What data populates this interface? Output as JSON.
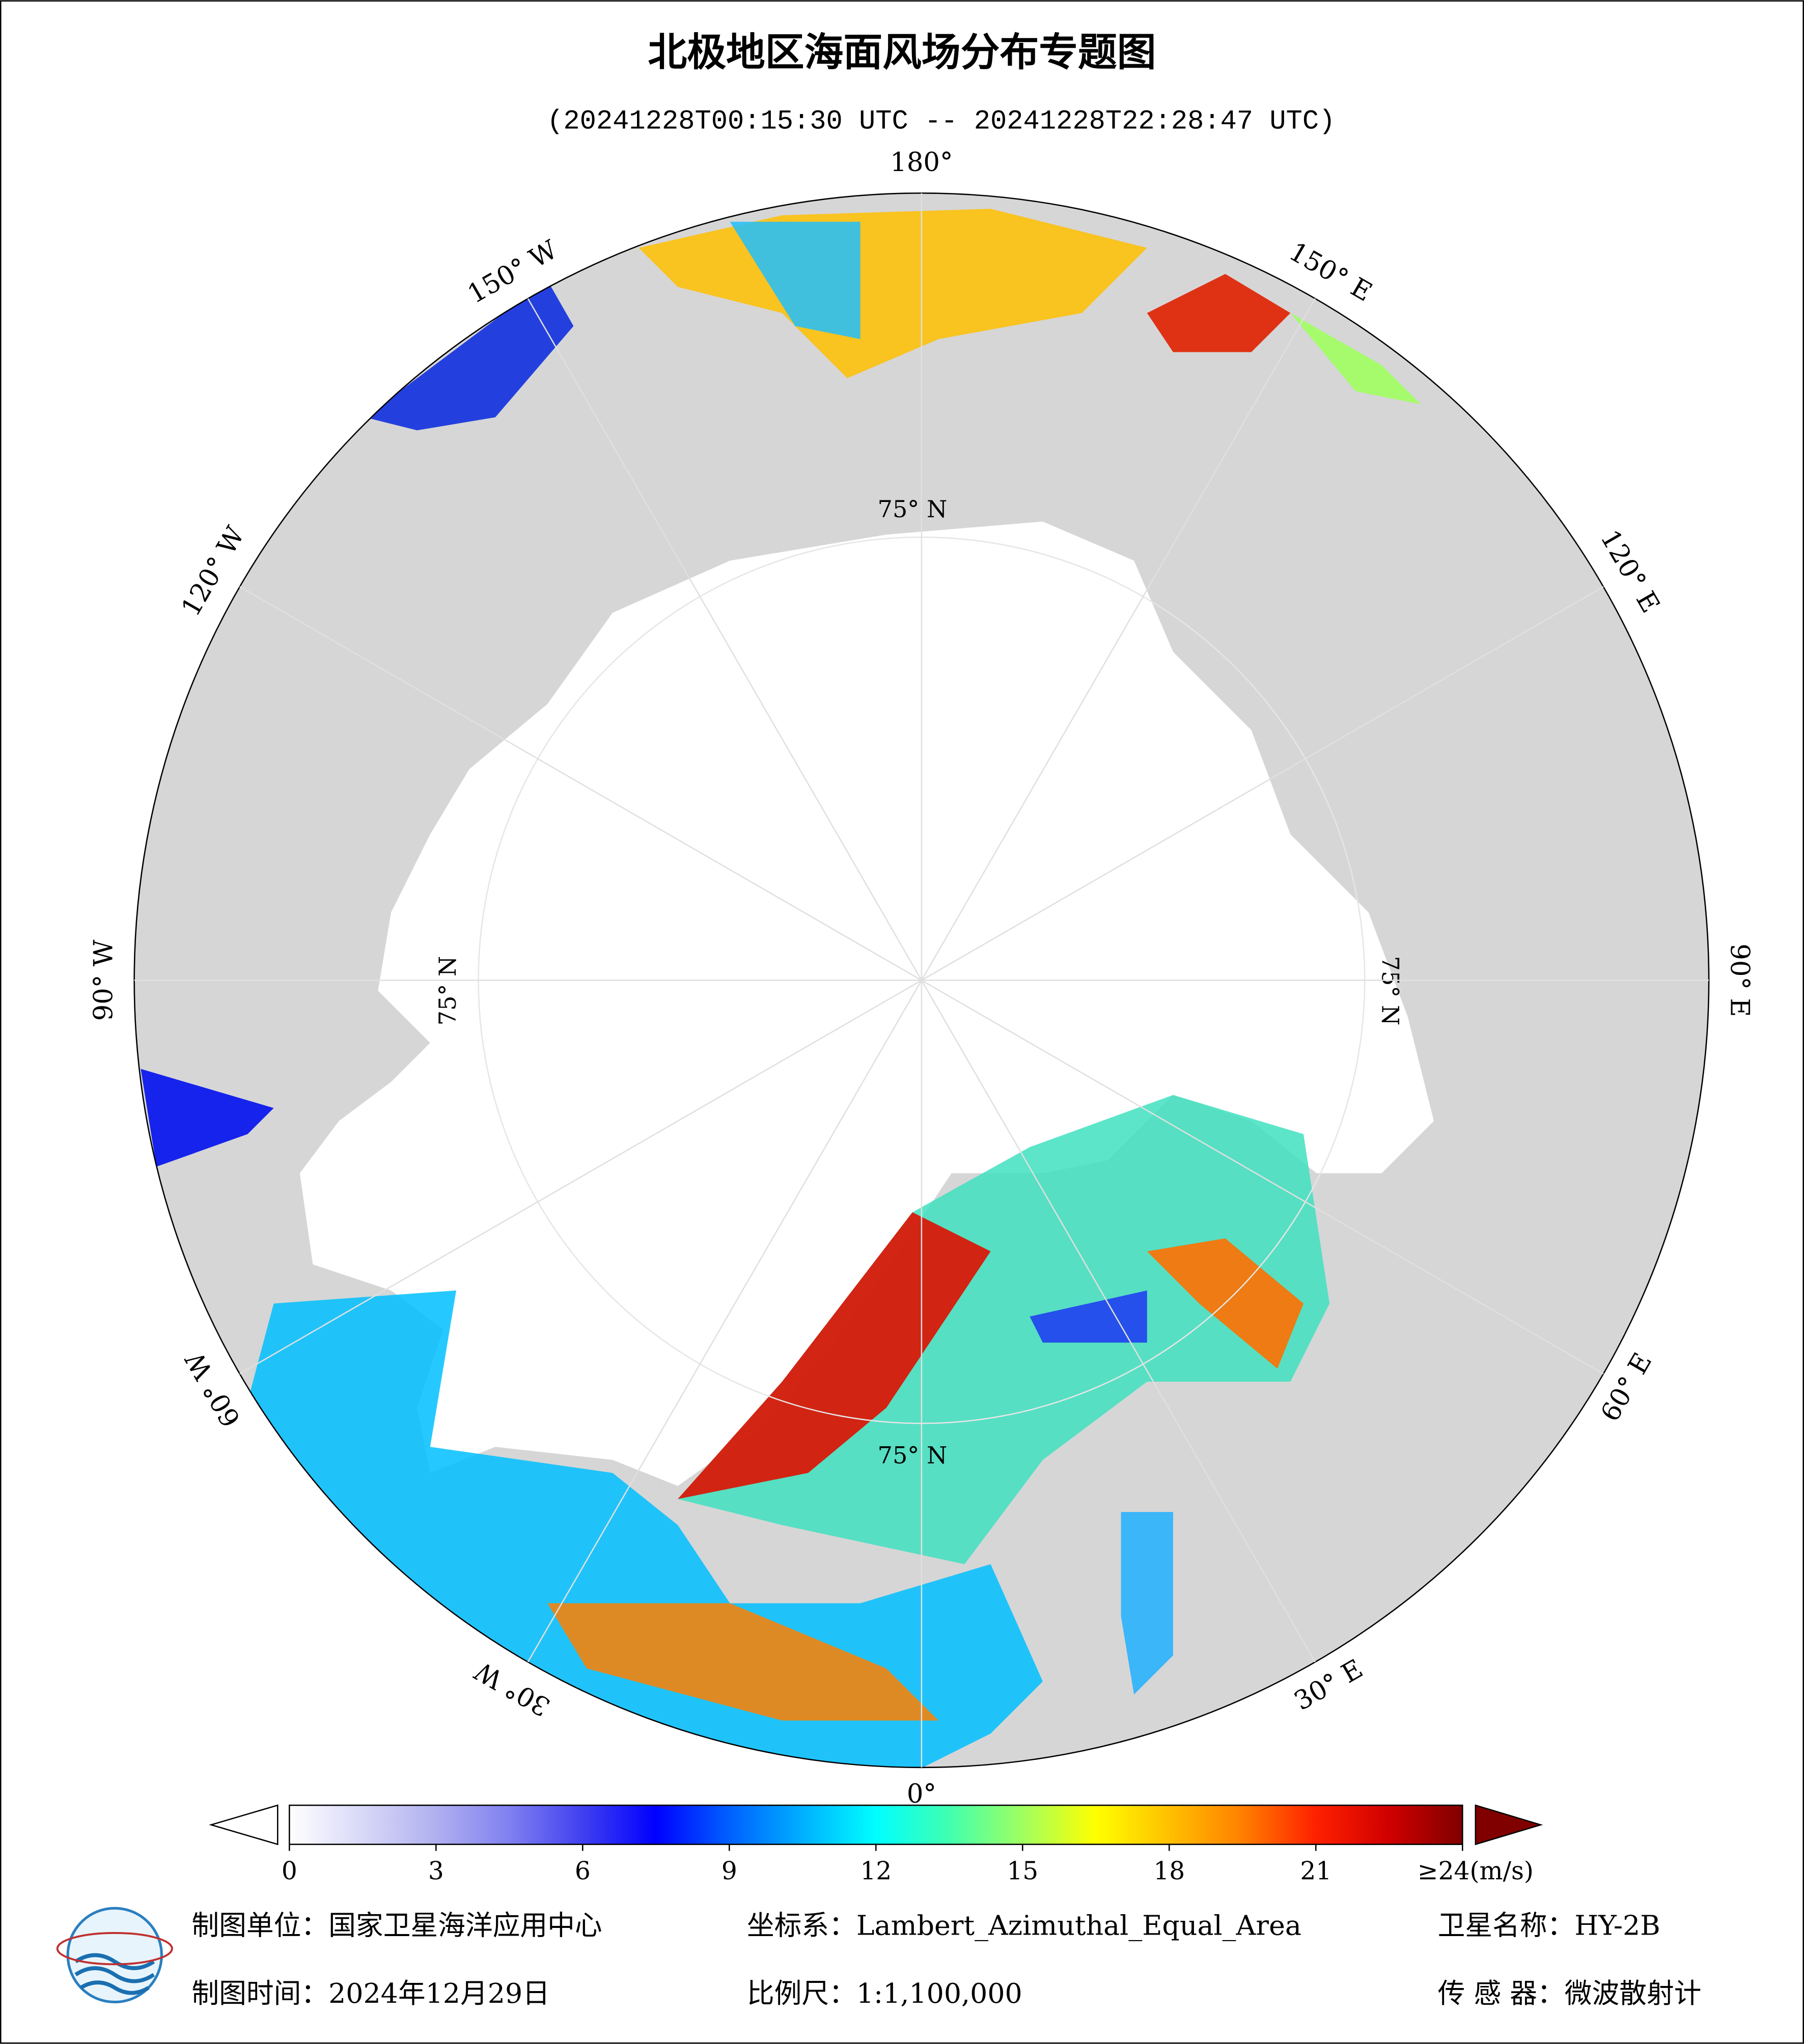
{
  "title": "北极地区海面风场分布专题图",
  "subtitle": "(20241228T00:15:30 UTC -- 20241228T22:28:47 UTC)",
  "map": {
    "longitude_labels": [
      "0°",
      "30° E",
      "60° E",
      "90° E",
      "120° E",
      "150° E",
      "180°",
      "150° W",
      "120° W",
      "90° W",
      "60° W",
      "30° W"
    ],
    "latitude_label": "75° N"
  },
  "colorbar": {
    "range": [
      0,
      24
    ],
    "ticks": [
      0,
      3,
      6,
      9,
      12,
      15,
      18,
      21,
      {
        "value": 24,
        "label": "≥24(m/s)"
      }
    ],
    "colors": [
      "#ffffff",
      "#d8d8f8",
      "#b0b0f0",
      "#8080f0",
      "#4040f0",
      "#0000ff",
      "#0060ff",
      "#00b0ff",
      "#00ffff",
      "#40ffb0",
      "#a0ff60",
      "#ffff00",
      "#ffc000",
      "#ff8000",
      "#ff2000",
      "#d00000",
      "#800000"
    ]
  },
  "footer": [
    "制图单位：国家卫星海洋应用中心",
    "坐标系：Lambert_Azimuthal_Equal_Area",
    "卫星名称：HY-2B",
    "制图时间：2024年12月29日",
    "比例尺：1:1,100,000",
    "传 感 器：微波散射计"
  ]
}
